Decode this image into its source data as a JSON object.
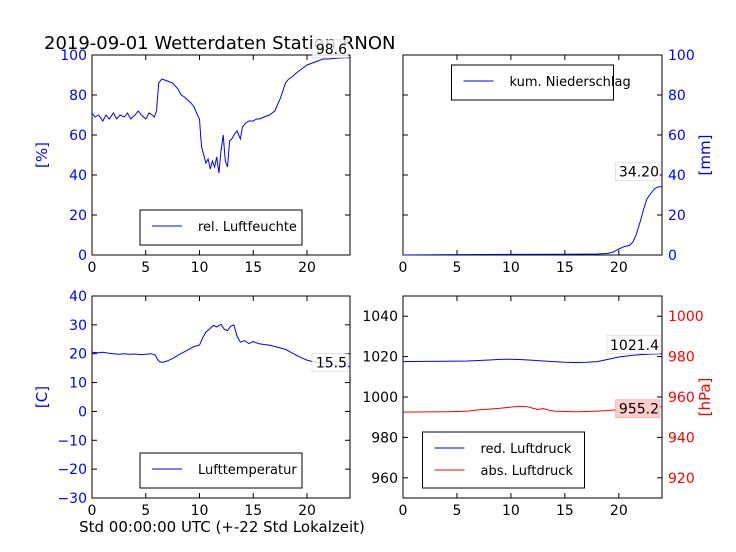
{
  "title": "2019-09-01 Wetterdaten Station RNON",
  "xlabel": "Std 00:00:00 UTC (+-22 Std Lokalzeit)",
  "colors": {
    "blue": "#0000ff",
    "red": "#ff0000",
    "axis": "#000000",
    "label_bg": "#ffcccc"
  },
  "chart_data": [
    {
      "type": "line",
      "panel": "humidity",
      "xlim": [
        0,
        24
      ],
      "ylim": [
        0,
        100
      ],
      "xticks": [
        "0",
        "5",
        "10",
        "15",
        "20"
      ],
      "yticks": [
        "0",
        "20",
        "40",
        "60",
        "80",
        "100"
      ],
      "ylabel": "[%]",
      "legend": "bottom-center",
      "series": [
        {
          "name": "rel. Luftfeuchte",
          "color": "#0000ff",
          "x": [
            0,
            0.3,
            0.6,
            1,
            1.3,
            1.6,
            2,
            2.3,
            2.6,
            3,
            3.3,
            3.6,
            4,
            4.3,
            4.6,
            5,
            5.3,
            5.6,
            5.8,
            6,
            6.2,
            6.5,
            7,
            7.5,
            8,
            8.3,
            8.6,
            9,
            9.2,
            9.5,
            9.8,
            10,
            10.1,
            10.2,
            10.4,
            10.6,
            10.8,
            11,
            11.2,
            11.4,
            11.6,
            11.8,
            12,
            12.2,
            12.4,
            12.6,
            12.8,
            13,
            13.2,
            13.5,
            13.8,
            14,
            14.3,
            14.6,
            15,
            15.3,
            15.6,
            16,
            16.5,
            17,
            17.5,
            18,
            18.3,
            18.6,
            19,
            19.5,
            20,
            20.5,
            21,
            21.5,
            22,
            22.5,
            23,
            23.5,
            24
          ],
          "y": [
            71,
            69,
            70,
            67,
            70,
            68,
            71,
            68,
            70,
            69,
            71,
            68,
            70,
            72,
            70,
            68,
            71,
            70,
            69,
            72,
            86,
            88,
            87,
            86,
            83,
            80,
            79,
            77,
            76,
            74,
            70,
            68,
            60,
            54,
            50,
            46,
            48,
            43,
            47,
            44,
            49,
            41,
            52,
            60,
            47,
            44,
            57,
            58,
            60,
            62,
            58,
            64,
            66,
            67,
            67,
            68,
            68,
            69,
            70,
            72,
            78,
            86,
            88,
            89,
            91,
            93,
            95,
            96,
            97,
            98,
            98,
            98.3,
            98.5,
            98.6,
            98.6
          ]
        }
      ],
      "annotation": "98.6"
    },
    {
      "type": "line",
      "panel": "precipitation",
      "xlim": [
        0,
        24
      ],
      "ylim": [
        0,
        100
      ],
      "xticks": [
        "0",
        "5",
        "10",
        "15",
        "20"
      ],
      "yticks": [
        "0",
        "20",
        "40",
        "60",
        "80",
        "100"
      ],
      "ylabel": "[mm]",
      "legend": "top-center",
      "series": [
        {
          "name": "kum. Niederschlag",
          "color": "#0000ff",
          "x": [
            0,
            5,
            10,
            15,
            18,
            19,
            19.5,
            20,
            20.5,
            21,
            21.3,
            21.6,
            22,
            22.3,
            22.6,
            23,
            23.3,
            23.6,
            24
          ],
          "y": [
            0,
            0.2,
            0.3,
            0.4,
            0.5,
            0.8,
            1.5,
            3,
            4.2,
            4.8,
            6.5,
            10,
            17,
            23,
            28,
            31,
            33,
            34,
            34.2
          ]
        }
      ],
      "annotation": "34.20"
    },
    {
      "type": "line",
      "panel": "temperature",
      "xlim": [
        0,
        24
      ],
      "ylim": [
        -30,
        40
      ],
      "xticks": [
        "0",
        "5",
        "10",
        "15",
        "20"
      ],
      "yticks": [
        "−30",
        "−20",
        "−10",
        "0",
        "10",
        "20",
        "30",
        "40"
      ],
      "ylabel": "[C]",
      "legend": "bottom-center",
      "series": [
        {
          "name": "Lufttemperatur",
          "color": "#0000ff",
          "x": [
            0,
            0.5,
            1,
            1.5,
            2,
            2.5,
            3,
            3.5,
            4,
            4.5,
            5,
            5.5,
            5.9,
            6.1,
            6.3,
            6.6,
            7,
            7.5,
            8,
            8.5,
            9,
            9.5,
            10,
            10.3,
            10.6,
            11,
            11.3,
            11.6,
            12,
            12.3,
            12.6,
            12.9,
            13.2,
            13.5,
            13.8,
            14.2,
            14.6,
            15,
            15.5,
            16,
            16.5,
            17,
            17.5,
            18,
            18.5,
            19,
            19.5,
            20,
            20.5,
            21,
            21.5,
            22,
            22.5,
            23,
            23.5,
            24
          ],
          "y": [
            20.5,
            20.3,
            20.5,
            20.2,
            20,
            19.8,
            20,
            19.8,
            19.9,
            19.7,
            19.8,
            20,
            19.5,
            18,
            17.2,
            17,
            17.5,
            18.3,
            19.5,
            20.5,
            21.5,
            22.5,
            23,
            25.5,
            27.5,
            28.8,
            29.8,
            29.3,
            30.2,
            28.5,
            28,
            29.5,
            30,
            26,
            24,
            24.5,
            23.5,
            24.2,
            23.5,
            23.2,
            23,
            22.5,
            22,
            21.5,
            20.5,
            19.5,
            18.6,
            17.8,
            17.3,
            17,
            16.8,
            16.5,
            16.2,
            15.8,
            15.6,
            15.5
          ]
        }
      ],
      "annotation": "15.5"
    },
    {
      "type": "line",
      "panel": "pressure",
      "xlim": [
        0,
        24
      ],
      "ylim": [
        950,
        1050
      ],
      "ylim_right": [
        910,
        1010
      ],
      "xticks": [
        "0",
        "5",
        "10",
        "15",
        "20"
      ],
      "yticks": [
        "960",
        "980",
        "1000",
        "1020",
        "1040"
      ],
      "yticks_right": [
        "920",
        "940",
        "960",
        "980",
        "1000"
      ],
      "ylabel_right": "[hPa]",
      "legend": "bottom-center",
      "series": [
        {
          "name": "red. Luftdruck",
          "color": "#0000ff",
          "axis": "left",
          "x": [
            0,
            2,
            4,
            6,
            8,
            9,
            10,
            11,
            12,
            13,
            14,
            15,
            16,
            17,
            18,
            19,
            20,
            21,
            22,
            23,
            24
          ],
          "y": [
            1017.5,
            1017.6,
            1017.7,
            1017.8,
            1018.3,
            1018.6,
            1018.7,
            1018.5,
            1018.2,
            1017.8,
            1017.5,
            1017.2,
            1017.1,
            1017.2,
            1017.5,
            1018.6,
            1019.8,
            1020.5,
            1021,
            1021.3,
            1021.4
          ]
        },
        {
          "name": "abs. Luftdruck",
          "color": "#ff0000",
          "axis": "right",
          "x": [
            0,
            2,
            4,
            5,
            6,
            6.5,
            7,
            8,
            9,
            10,
            10.5,
            11,
            11.5,
            12,
            12.5,
            13,
            13.5,
            14,
            15,
            16,
            17,
            18,
            19,
            20,
            21,
            22,
            23,
            24
          ],
          "y": [
            952.5,
            952.6,
            952.7,
            952.8,
            953,
            953.3,
            953.6,
            954,
            954.4,
            955,
            955.3,
            955.4,
            955.2,
            954.5,
            953.8,
            954.3,
            953.5,
            953,
            952.8,
            952.7,
            952.8,
            953,
            953.3,
            953.8,
            954.3,
            954.8,
            955.1,
            955.2
          ]
        }
      ],
      "annotations": [
        "1021.4",
        "955.2"
      ]
    }
  ]
}
